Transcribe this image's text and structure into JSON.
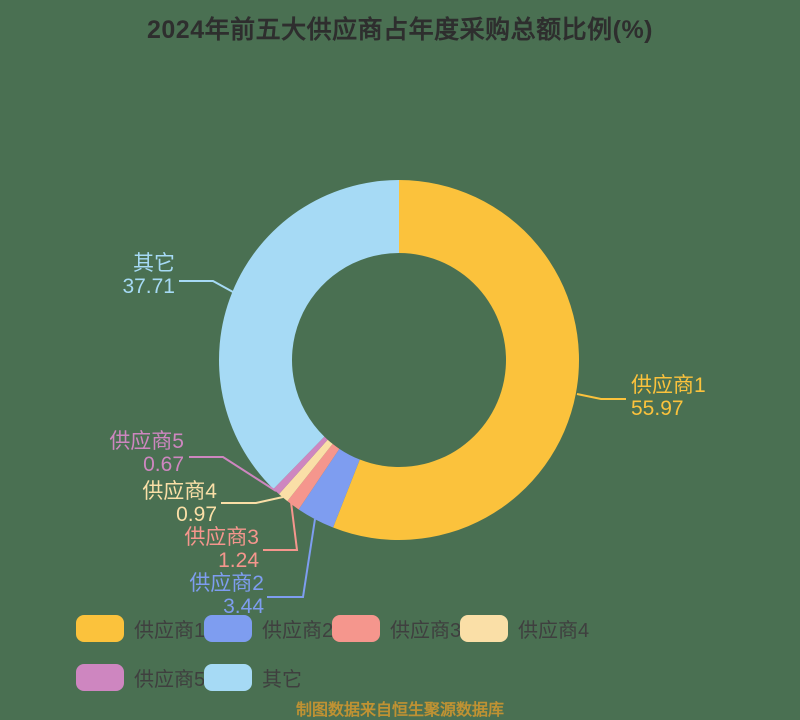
{
  "chart_data": {
    "type": "pie",
    "subtype": "donut",
    "title": "2024年前五大供应商占年度采购总额比例(%)",
    "start_angle": "top",
    "direction": "clockwise",
    "unit": "%",
    "slices": [
      {
        "label": "供应商1",
        "value": 55.97,
        "color": "#FBC23C"
      },
      {
        "label": "供应商2",
        "value": 3.44,
        "color": "#7E9DF0"
      },
      {
        "label": "供应商3",
        "value": 1.24,
        "color": "#F5968D"
      },
      {
        "label": "供应商4",
        "value": 0.97,
        "color": "#FADFA7"
      },
      {
        "label": "供应商5",
        "value": 0.67,
        "color": "#CE86C0"
      },
      {
        "label": "其它",
        "value": 37.71,
        "color": "#A6DAF5"
      }
    ],
    "legend_position": "bottom-left",
    "background_color": "#4A7052",
    "title_color": "#2e2e2e"
  },
  "footer": {
    "caption": "制图数据来自恒生聚源数据库"
  }
}
